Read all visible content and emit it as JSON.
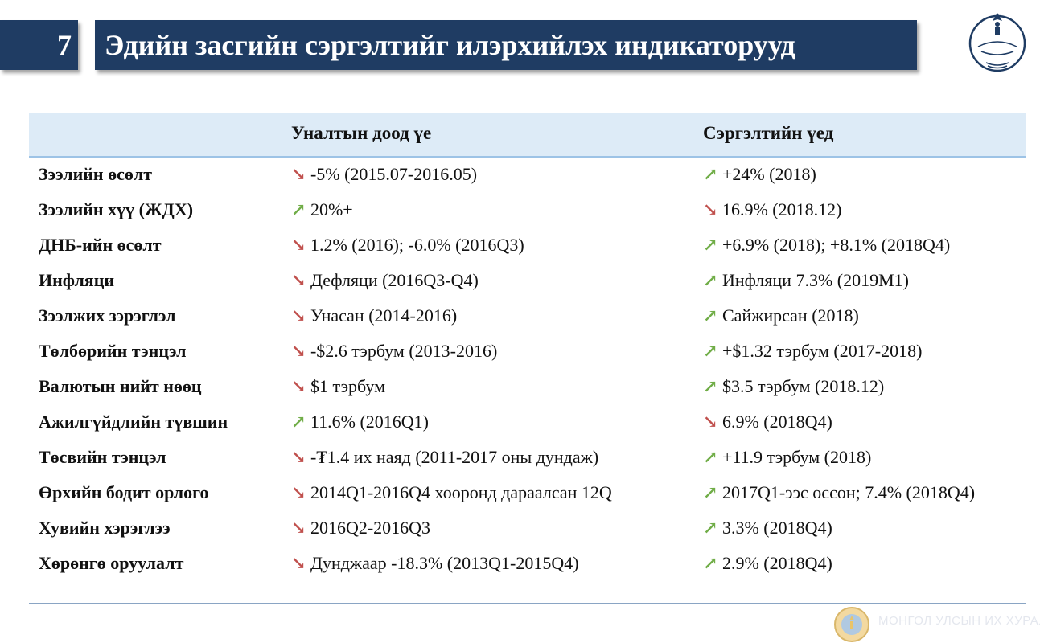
{
  "header": {
    "slide_number": "7",
    "title": "Эдийн засгийн сэргэлтийг илэрхийлэх индикаторууд",
    "logo_icon": "central-bank-soyombo-logo-icon"
  },
  "table": {
    "columns": [
      "",
      "Уналтын доод үе",
      "Сэргэлтийн үед"
    ],
    "arrows": {
      "down": "↘",
      "up": "↗"
    },
    "colors": {
      "down": "#c0504d",
      "up": "#70ad47"
    },
    "rows": [
      {
        "label": "Зээлийн өсөлт",
        "before": "-5% (2015.07-2016.05)",
        "before_dir": "down",
        "after": "+24% (2018)",
        "after_dir": "up"
      },
      {
        "label": "Зээлийн хүү (ЖДХ)",
        "before": "20%+",
        "before_dir": "up",
        "after": "16.9% (2018.12)",
        "after_dir": "down"
      },
      {
        "label": "ДНБ-ийн өсөлт",
        "before": "1.2% (2016); -6.0% (2016Q3)",
        "before_dir": "down",
        "after": "+6.9% (2018); +8.1% (2018Q4)",
        "after_dir": "up"
      },
      {
        "label": "Инфляци",
        "before": "Дефляци (2016Q3-Q4)",
        "before_dir": "down",
        "after": "Инфляци 7.3% (2019M1)",
        "after_dir": "up"
      },
      {
        "label": "Зээлжих зэрэглэл",
        "before": "Унасан (2014-2016)",
        "before_dir": "down",
        "after": "Сайжирсан (2018)",
        "after_dir": "up"
      },
      {
        "label": "Төлбөрийн тэнцэл",
        "before": "-$2.6 тэрбум (2013-2016)",
        "before_dir": "down",
        "after": "+$1.32 тэрбум (2017-2018)",
        "after_dir": "up"
      },
      {
        "label": "Валютын нийт нөөц",
        "before": "$1 тэрбум",
        "before_dir": "down",
        "after": "$3.5 тэрбум (2018.12)",
        "after_dir": "up"
      },
      {
        "label": "Ажилгүйдлийн түвшин",
        "before": "11.6% (2016Q1)",
        "before_dir": "up",
        "after": "6.9% (2018Q4)",
        "after_dir": "down"
      },
      {
        "label": "Төсвийн тэнцэл",
        "before": "-₮1.4 их наяд (2011-2017 оны дундаж)",
        "before_dir": "down",
        "after": "+11.9 тэрбум (2018)",
        "after_dir": "up"
      },
      {
        "label": "Өрхийн бодит орлого",
        "before": "2014Q1-2016Q4 хооронд дараалсан 12Q",
        "before_dir": "down",
        "after": "2017Q1-ээс өссөн; 7.4% (2018Q4)",
        "after_dir": "up"
      },
      {
        "label": "Хувийн хэрэглээ",
        "before": "2016Q2-2016Q3",
        "before_dir": "down",
        "after": "3.3% (2018Q4)",
        "after_dir": "up"
      },
      {
        "label": "Хөрөнгө оруулалт",
        "before": "Дунджаар -18.3%  (2013Q1-2015Q4)",
        "before_dir": "down",
        "after": "2.9% (2018Q4)",
        "after_dir": "up"
      }
    ]
  },
  "footer": {
    "text": "МОНГОЛ УЛСЫН ИХ ХУРАЛ",
    "seal_icon": "state-emblem-seal-icon"
  }
}
